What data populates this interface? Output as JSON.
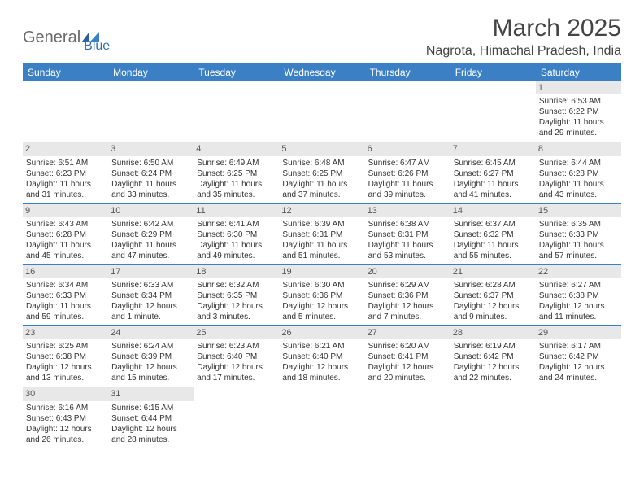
{
  "logo": {
    "part1": "General",
    "part2": "Blue"
  },
  "title": "March 2025",
  "location": "Nagrota, Himachal Pradesh, India",
  "colors": {
    "header_bg": "#3b7fc4",
    "header_text": "#ffffff",
    "daynum_bg": "#e8e8e8",
    "border": "#3b7fc4",
    "logo_gray": "#6b6b6b",
    "logo_blue": "#2f6fae"
  },
  "weekdays": [
    "Sunday",
    "Monday",
    "Tuesday",
    "Wednesday",
    "Thursday",
    "Friday",
    "Saturday"
  ],
  "first_weekday_index": 6,
  "days": [
    {
      "n": 1,
      "sunrise": "6:53 AM",
      "sunset": "6:22 PM",
      "daylight": "11 hours and 29 minutes."
    },
    {
      "n": 2,
      "sunrise": "6:51 AM",
      "sunset": "6:23 PM",
      "daylight": "11 hours and 31 minutes."
    },
    {
      "n": 3,
      "sunrise": "6:50 AM",
      "sunset": "6:24 PM",
      "daylight": "11 hours and 33 minutes."
    },
    {
      "n": 4,
      "sunrise": "6:49 AM",
      "sunset": "6:25 PM",
      "daylight": "11 hours and 35 minutes."
    },
    {
      "n": 5,
      "sunrise": "6:48 AM",
      "sunset": "6:25 PM",
      "daylight": "11 hours and 37 minutes."
    },
    {
      "n": 6,
      "sunrise": "6:47 AM",
      "sunset": "6:26 PM",
      "daylight": "11 hours and 39 minutes."
    },
    {
      "n": 7,
      "sunrise": "6:45 AM",
      "sunset": "6:27 PM",
      "daylight": "11 hours and 41 minutes."
    },
    {
      "n": 8,
      "sunrise": "6:44 AM",
      "sunset": "6:28 PM",
      "daylight": "11 hours and 43 minutes."
    },
    {
      "n": 9,
      "sunrise": "6:43 AM",
      "sunset": "6:28 PM",
      "daylight": "11 hours and 45 minutes."
    },
    {
      "n": 10,
      "sunrise": "6:42 AM",
      "sunset": "6:29 PM",
      "daylight": "11 hours and 47 minutes."
    },
    {
      "n": 11,
      "sunrise": "6:41 AM",
      "sunset": "6:30 PM",
      "daylight": "11 hours and 49 minutes."
    },
    {
      "n": 12,
      "sunrise": "6:39 AM",
      "sunset": "6:31 PM",
      "daylight": "11 hours and 51 minutes."
    },
    {
      "n": 13,
      "sunrise": "6:38 AM",
      "sunset": "6:31 PM",
      "daylight": "11 hours and 53 minutes."
    },
    {
      "n": 14,
      "sunrise": "6:37 AM",
      "sunset": "6:32 PM",
      "daylight": "11 hours and 55 minutes."
    },
    {
      "n": 15,
      "sunrise": "6:35 AM",
      "sunset": "6:33 PM",
      "daylight": "11 hours and 57 minutes."
    },
    {
      "n": 16,
      "sunrise": "6:34 AM",
      "sunset": "6:33 PM",
      "daylight": "11 hours and 59 minutes."
    },
    {
      "n": 17,
      "sunrise": "6:33 AM",
      "sunset": "6:34 PM",
      "daylight": "12 hours and 1 minute."
    },
    {
      "n": 18,
      "sunrise": "6:32 AM",
      "sunset": "6:35 PM",
      "daylight": "12 hours and 3 minutes."
    },
    {
      "n": 19,
      "sunrise": "6:30 AM",
      "sunset": "6:36 PM",
      "daylight": "12 hours and 5 minutes."
    },
    {
      "n": 20,
      "sunrise": "6:29 AM",
      "sunset": "6:36 PM",
      "daylight": "12 hours and 7 minutes."
    },
    {
      "n": 21,
      "sunrise": "6:28 AM",
      "sunset": "6:37 PM",
      "daylight": "12 hours and 9 minutes."
    },
    {
      "n": 22,
      "sunrise": "6:27 AM",
      "sunset": "6:38 PM",
      "daylight": "12 hours and 11 minutes."
    },
    {
      "n": 23,
      "sunrise": "6:25 AM",
      "sunset": "6:38 PM",
      "daylight": "12 hours and 13 minutes."
    },
    {
      "n": 24,
      "sunrise": "6:24 AM",
      "sunset": "6:39 PM",
      "daylight": "12 hours and 15 minutes."
    },
    {
      "n": 25,
      "sunrise": "6:23 AM",
      "sunset": "6:40 PM",
      "daylight": "12 hours and 17 minutes."
    },
    {
      "n": 26,
      "sunrise": "6:21 AM",
      "sunset": "6:40 PM",
      "daylight": "12 hours and 18 minutes."
    },
    {
      "n": 27,
      "sunrise": "6:20 AM",
      "sunset": "6:41 PM",
      "daylight": "12 hours and 20 minutes."
    },
    {
      "n": 28,
      "sunrise": "6:19 AM",
      "sunset": "6:42 PM",
      "daylight": "12 hours and 22 minutes."
    },
    {
      "n": 29,
      "sunrise": "6:17 AM",
      "sunset": "6:42 PM",
      "daylight": "12 hours and 24 minutes."
    },
    {
      "n": 30,
      "sunrise": "6:16 AM",
      "sunset": "6:43 PM",
      "daylight": "12 hours and 26 minutes."
    },
    {
      "n": 31,
      "sunrise": "6:15 AM",
      "sunset": "6:44 PM",
      "daylight": "12 hours and 28 minutes."
    }
  ],
  "labels": {
    "sunrise": "Sunrise:",
    "sunset": "Sunset:",
    "daylight": "Daylight:"
  }
}
